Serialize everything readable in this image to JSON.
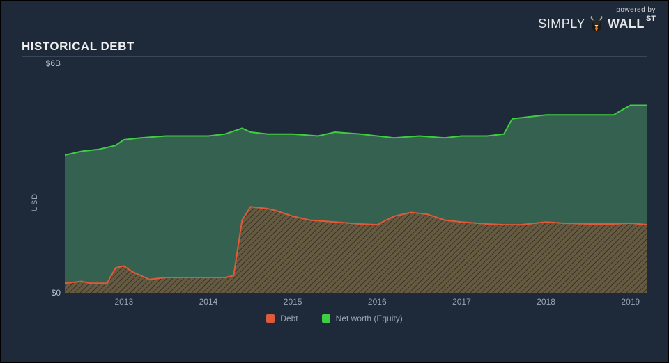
{
  "branding": {
    "powered_by": "powered by",
    "brand_simply": "SIMPLY",
    "brand_wall": "WALL",
    "brand_st": "ST",
    "text_color": "#e8e8e8",
    "bull_body": "#1a1a1a",
    "bull_tie": "#e67e22"
  },
  "title": "HISTORICAL DEBT",
  "background_color": "#1e2a3a",
  "rule_color": "#3a4656",
  "chart": {
    "type": "area",
    "ylabel": "USD",
    "ylim": [
      0,
      6
    ],
    "yticks": [
      {
        "v": 6,
        "label": "$6B"
      },
      {
        "v": 0,
        "label": "$0"
      }
    ],
    "x_start_year": 2012.3,
    "x_end_year": 2019.2,
    "xticks": [
      "2013",
      "2014",
      "2015",
      "2016",
      "2017",
      "2018",
      "2019"
    ],
    "baseline_color": "#4a5668",
    "axis_text_color": "#9aa5b3",
    "series": [
      {
        "name": "Net worth (Equity)",
        "color_line": "#3fce3f",
        "color_fill": "#3a6b55",
        "fill_opacity": 0.85,
        "line_width": 2,
        "points": [
          [
            2012.3,
            3.6
          ],
          [
            2012.5,
            3.7
          ],
          [
            2012.7,
            3.75
          ],
          [
            2012.9,
            3.85
          ],
          [
            2013.0,
            4.0
          ],
          [
            2013.2,
            4.05
          ],
          [
            2013.5,
            4.1
          ],
          [
            2013.8,
            4.1
          ],
          [
            2014.0,
            4.1
          ],
          [
            2014.2,
            4.15
          ],
          [
            2014.4,
            4.3
          ],
          [
            2014.5,
            4.2
          ],
          [
            2014.7,
            4.15
          ],
          [
            2015.0,
            4.15
          ],
          [
            2015.3,
            4.1
          ],
          [
            2015.5,
            4.2
          ],
          [
            2015.8,
            4.15
          ],
          [
            2016.0,
            4.1
          ],
          [
            2016.2,
            4.05
          ],
          [
            2016.5,
            4.1
          ],
          [
            2016.8,
            4.05
          ],
          [
            2017.0,
            4.1
          ],
          [
            2017.3,
            4.1
          ],
          [
            2017.5,
            4.15
          ],
          [
            2017.6,
            4.55
          ],
          [
            2017.8,
            4.6
          ],
          [
            2018.0,
            4.65
          ],
          [
            2018.3,
            4.65
          ],
          [
            2018.5,
            4.65
          ],
          [
            2018.8,
            4.65
          ],
          [
            2018.9,
            4.78
          ],
          [
            2019.0,
            4.9
          ],
          [
            2019.2,
            4.9
          ]
        ]
      },
      {
        "name": "Debt",
        "color_line": "#e05a3a",
        "color_fill": "#6b5a3f",
        "fill_opacity": 0.9,
        "hatched": true,
        "hatch_color": "#3a3028",
        "line_width": 2,
        "points": [
          [
            2012.3,
            0.25
          ],
          [
            2012.5,
            0.3
          ],
          [
            2012.6,
            0.25
          ],
          [
            2012.8,
            0.25
          ],
          [
            2012.9,
            0.65
          ],
          [
            2013.0,
            0.7
          ],
          [
            2013.1,
            0.55
          ],
          [
            2013.3,
            0.35
          ],
          [
            2013.5,
            0.4
          ],
          [
            2013.8,
            0.4
          ],
          [
            2014.0,
            0.4
          ],
          [
            2014.2,
            0.4
          ],
          [
            2014.3,
            0.45
          ],
          [
            2014.4,
            1.9
          ],
          [
            2014.5,
            2.25
          ],
          [
            2014.7,
            2.2
          ],
          [
            2014.8,
            2.15
          ],
          [
            2015.0,
            2.0
          ],
          [
            2015.2,
            1.9
          ],
          [
            2015.5,
            1.85
          ],
          [
            2015.8,
            1.8
          ],
          [
            2016.0,
            1.78
          ],
          [
            2016.2,
            2.0
          ],
          [
            2016.4,
            2.1
          ],
          [
            2016.6,
            2.05
          ],
          [
            2016.8,
            1.9
          ],
          [
            2017.0,
            1.85
          ],
          [
            2017.3,
            1.8
          ],
          [
            2017.5,
            1.78
          ],
          [
            2017.7,
            1.78
          ],
          [
            2018.0,
            1.85
          ],
          [
            2018.2,
            1.82
          ],
          [
            2018.5,
            1.8
          ],
          [
            2018.8,
            1.8
          ],
          [
            2019.0,
            1.82
          ],
          [
            2019.2,
            1.78
          ]
        ]
      }
    ],
    "legend": [
      {
        "label": "Debt",
        "color": "#e05a3a"
      },
      {
        "label": "Net worth (Equity)",
        "color": "#3fce3f"
      }
    ]
  }
}
